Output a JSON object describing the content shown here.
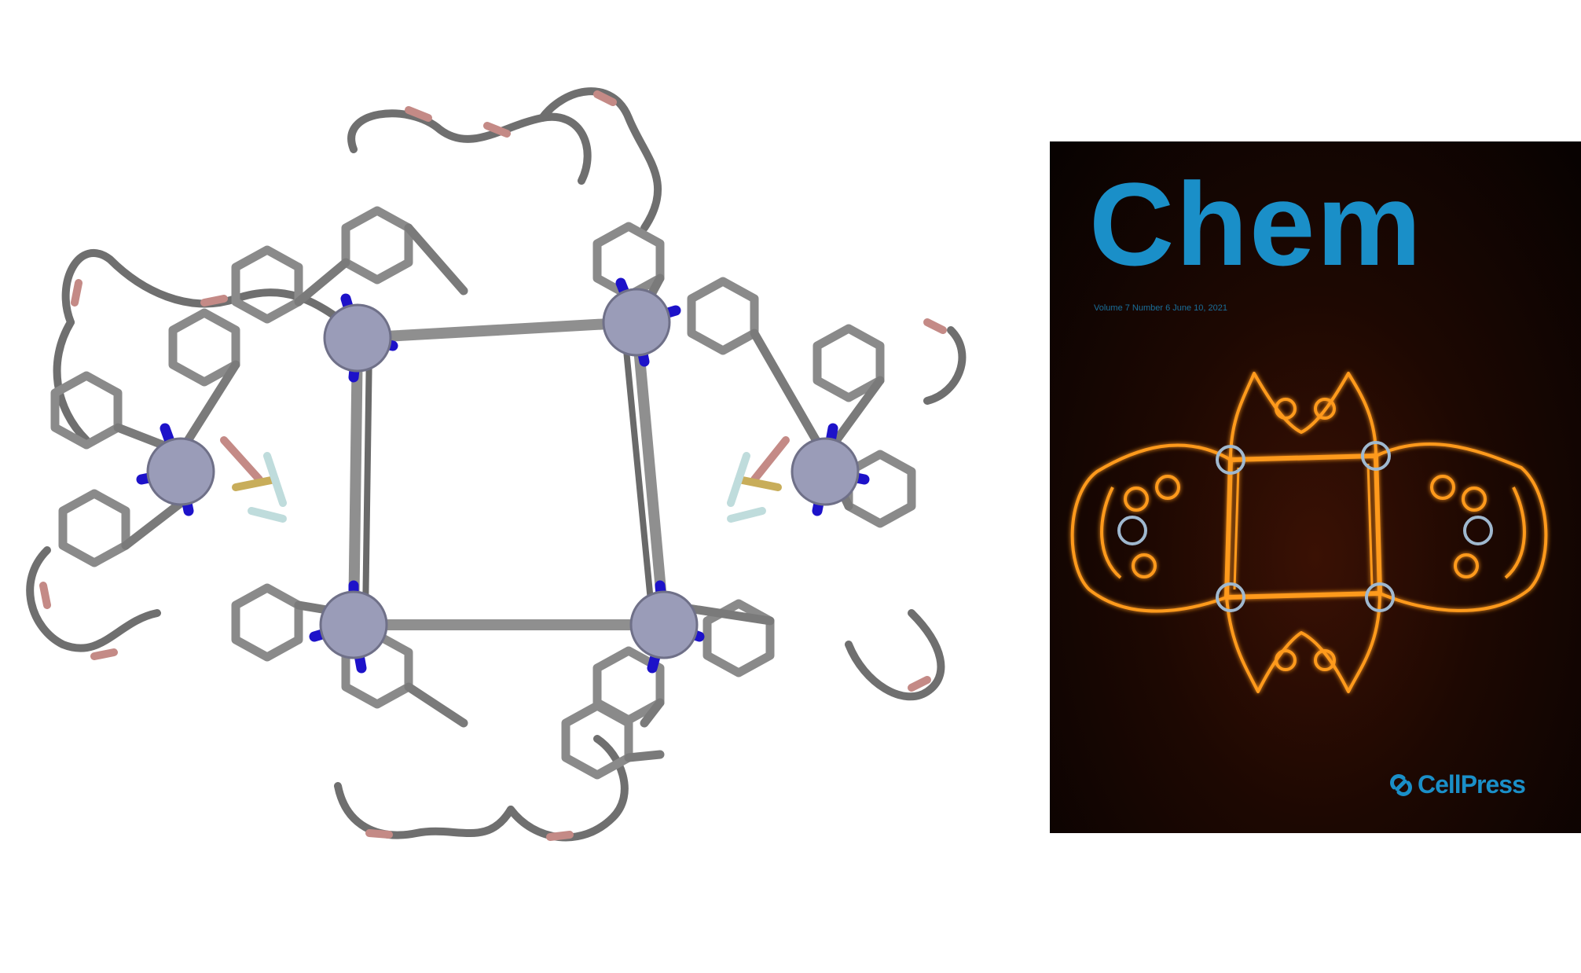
{
  "cover": {
    "journal_title": "Chem",
    "issue_line": "Volume 7 Number 6 June 10, 2021",
    "publisher": "CellPress"
  },
  "colors": {
    "bond": "#8a8a8a",
    "bond_dark": "#5a5a5a",
    "nitrogen": "#1d12c9",
    "oxygen": "#c48a86",
    "metal": "#9a9cb8",
    "guest_sulfur": "#c8ad5a",
    "guest_fluorine": "#bfdcdc",
    "cover_background": "#1d0802",
    "cover_title": "#1a8fc8",
    "cover_glow": "#ff9a1c",
    "cover_rings": "#9fb8cf"
  },
  "icons": {
    "publisher_mark": "cellpress-logo-icon"
  }
}
